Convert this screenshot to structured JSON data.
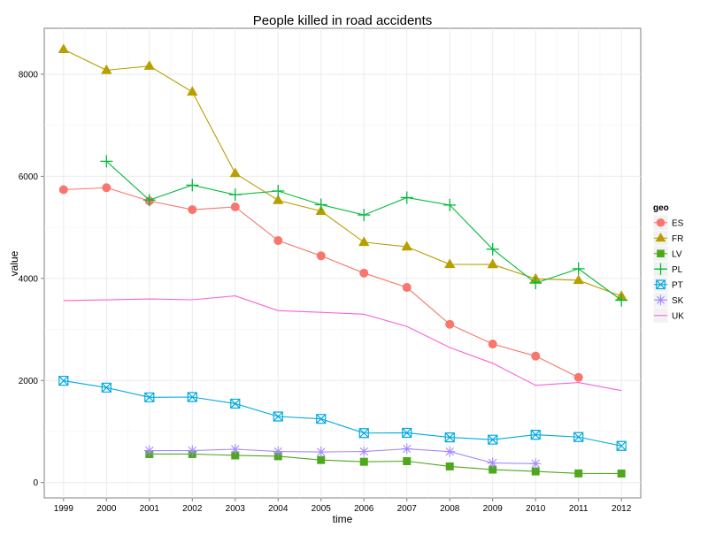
{
  "chart_data": {
    "type": "line",
    "title": "People killed in road accidents",
    "xlabel": "time",
    "ylabel": "value",
    "legend_title": "geo",
    "legend_position": "right",
    "grid": true,
    "xlim": [
      1998.55,
      2012.45
    ],
    "ylim": [
      -300,
      8900
    ],
    "x_ticks": [
      "1999",
      "2000",
      "2001",
      "2002",
      "2003",
      "2004",
      "2005",
      "2006",
      "2007",
      "2008",
      "2009",
      "2010",
      "2011",
      "2012"
    ],
    "y_ticks": [
      "0",
      "2000",
      "4000",
      "6000",
      "8000"
    ],
    "series": [
      {
        "name": "ES",
        "color": "#F8766D",
        "shape": "circle",
        "x": [
          1999,
          2000,
          2001,
          2002,
          2003,
          2004,
          2005,
          2006,
          2007,
          2008,
          2009,
          2010,
          2011
        ],
        "values": [
          5738,
          5777,
          5517,
          5347,
          5400,
          4741,
          4442,
          4104,
          3823,
          3100,
          2714,
          2478,
          2060
        ]
      },
      {
        "name": "FR",
        "color": "#B79F00",
        "shape": "triangle",
        "x": [
          1999,
          2000,
          2001,
          2002,
          2003,
          2004,
          2005,
          2006,
          2007,
          2008,
          2009,
          2010,
          2011,
          2012
        ],
        "values": [
          8487,
          8079,
          8160,
          7655,
          6058,
          5530,
          5318,
          4709,
          4620,
          4275,
          4273,
          3992,
          3963,
          3653
        ]
      },
      {
        "name": "LV",
        "color": "#4DA81C",
        "shape": "square",
        "x": [
          2001,
          2002,
          2003,
          2004,
          2005,
          2006,
          2007,
          2008,
          2009,
          2010,
          2011,
          2012
        ],
        "values": [
          558,
          559,
          532,
          516,
          442,
          407,
          419,
          316,
          254,
          218,
          179,
          177
        ]
      },
      {
        "name": "PL",
        "color": "#00BA38",
        "shape": "plus",
        "x": [
          2000,
          2001,
          2002,
          2003,
          2004,
          2005,
          2006,
          2007,
          2008,
          2009,
          2010,
          2011,
          2012
        ],
        "values": [
          6294,
          5534,
          5827,
          5640,
          5712,
          5444,
          5243,
          5583,
          5437,
          4572,
          3908,
          4189,
          3571
        ]
      },
      {
        "name": "PT",
        "color": "#00A9E0",
        "shape": "boxx",
        "x": [
          1999,
          2000,
          2001,
          2002,
          2003,
          2004,
          2005,
          2006,
          2007,
          2008,
          2009,
          2010,
          2011,
          2012
        ],
        "values": [
          1995,
          1860,
          1670,
          1675,
          1546,
          1294,
          1247,
          969,
          974,
          885,
          840,
          937,
          891,
          718
        ]
      },
      {
        "name": "SK",
        "color": "#A58AFF",
        "shape": "star",
        "x": [
          2001,
          2002,
          2003,
          2004,
          2005,
          2006,
          2007,
          2008,
          2009,
          2010
        ],
        "values": [
          625,
          626,
          653,
          608,
          600,
          608,
          661,
          606,
          384,
          371
        ]
      },
      {
        "name": "UK",
        "color": "#FB61D7",
        "shape": "none",
        "x": [
          1999,
          2000,
          2001,
          2002,
          2003,
          2004,
          2005,
          2006,
          2007,
          2008,
          2009,
          2010,
          2011,
          2012
        ],
        "values": [
          3564,
          3580,
          3598,
          3581,
          3658,
          3368,
          3336,
          3298,
          3059,
          2645,
          2337,
          1905,
          1960,
          1802
        ]
      }
    ]
  }
}
